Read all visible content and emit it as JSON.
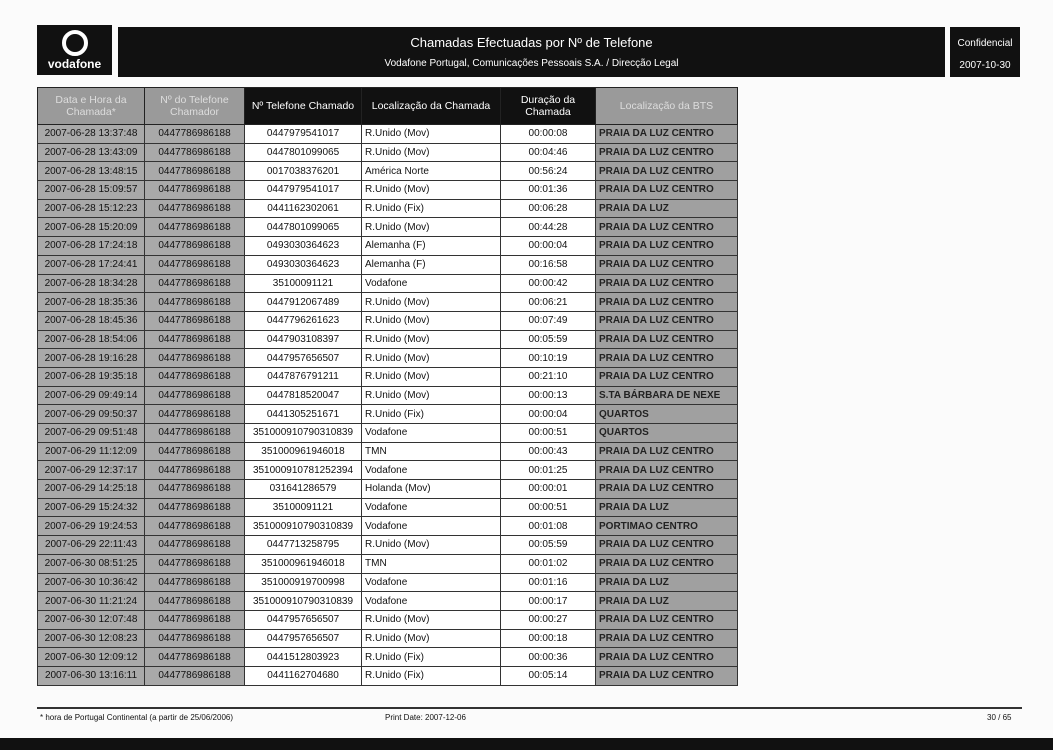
{
  "header": {
    "logo_text": "vodafone",
    "title": "Chamadas Efectuadas por Nº de Telefone",
    "subtitle": "Vodafone Portugal, Comunicações Pessoais S.A.  /  Direcção Legal",
    "classification": "Confidencial",
    "date": "2007-10-30"
  },
  "table": {
    "columns": [
      "Data e Hora da Chamada*",
      "Nº do Telefone Chamador",
      "Nº Telefone Chamado",
      "Localização da Chamada",
      "Duração da Chamada",
      "Localização da BTS"
    ],
    "rows": [
      [
        "2007-06-28 13:37:48",
        "0447786986188",
        "0447979541017",
        "R.Unido (Mov)",
        "00:00:08",
        "PRAIA DA LUZ CENTRO"
      ],
      [
        "2007-06-28 13:43:09",
        "0447786986188",
        "0447801099065",
        "R.Unido (Mov)",
        "00:04:46",
        "PRAIA DA LUZ CENTRO"
      ],
      [
        "2007-06-28 13:48:15",
        "0447786986188",
        "0017038376201",
        "América Norte",
        "00:56:24",
        "PRAIA DA LUZ CENTRO"
      ],
      [
        "2007-06-28 15:09:57",
        "0447786986188",
        "0447979541017",
        "R.Unido (Mov)",
        "00:01:36",
        "PRAIA DA LUZ CENTRO"
      ],
      [
        "2007-06-28 15:12:23",
        "0447786986188",
        "0441162302061",
        "R.Unido (Fix)",
        "00:06:28",
        "PRAIA DA LUZ"
      ],
      [
        "2007-06-28 15:20:09",
        "0447786986188",
        "0447801099065",
        "R.Unido (Mov)",
        "00:44:28",
        "PRAIA DA LUZ CENTRO"
      ],
      [
        "2007-06-28 17:24:18",
        "0447786986188",
        "0493030364623",
        "Alemanha (F)",
        "00:00:04",
        "PRAIA DA LUZ CENTRO"
      ],
      [
        "2007-06-28 17:24:41",
        "0447786986188",
        "0493030364623",
        "Alemanha (F)",
        "00:16:58",
        "PRAIA DA LUZ CENTRO"
      ],
      [
        "2007-06-28 18:34:28",
        "0447786986188",
        "35100091121",
        "Vodafone",
        "00:00:42",
        "PRAIA DA LUZ CENTRO"
      ],
      [
        "2007-06-28 18:35:36",
        "0447786986188",
        "0447912067489",
        "R.Unido (Mov)",
        "00:06:21",
        "PRAIA DA LUZ CENTRO"
      ],
      [
        "2007-06-28 18:45:36",
        "0447786986188",
        "0447796261623",
        "R.Unido (Mov)",
        "00:07:49",
        "PRAIA DA LUZ CENTRO"
      ],
      [
        "2007-06-28 18:54:06",
        "0447786986188",
        "0447903108397",
        "R.Unido (Mov)",
        "00:05:59",
        "PRAIA DA LUZ CENTRO"
      ],
      [
        "2007-06-28 19:16:28",
        "0447786986188",
        "0447957656507",
        "R.Unido (Mov)",
        "00:10:19",
        "PRAIA DA LUZ CENTRO"
      ],
      [
        "2007-06-28 19:35:18",
        "0447786986188",
        "0447876791211",
        "R.Unido (Mov)",
        "00:21:10",
        "PRAIA DA LUZ CENTRO"
      ],
      [
        "2007-06-29 09:49:14",
        "0447786986188",
        "0447818520047",
        "R.Unido (Mov)",
        "00:00:13",
        "S.TA BÁRBARA DE NEXE"
      ],
      [
        "2007-06-29 09:50:37",
        "0447786986188",
        "0441305251671",
        "R.Unido (Fix)",
        "00:00:04",
        "QUARTOS"
      ],
      [
        "2007-06-29 09:51:48",
        "0447786986188",
        "351000910790310839",
        "Vodafone",
        "00:00:51",
        "QUARTOS"
      ],
      [
        "2007-06-29 11:12:09",
        "0447786986188",
        "351000961946018",
        "TMN",
        "00:00:43",
        "PRAIA DA LUZ CENTRO"
      ],
      [
        "2007-06-29 12:37:17",
        "0447786986188",
        "351000910781252394",
        "Vodafone",
        "00:01:25",
        "PRAIA DA LUZ CENTRO"
      ],
      [
        "2007-06-29 14:25:18",
        "0447786986188",
        "031641286579",
        "Holanda (Mov)",
        "00:00:01",
        "PRAIA DA LUZ CENTRO"
      ],
      [
        "2007-06-29 15:24:32",
        "0447786986188",
        "35100091121",
        "Vodafone",
        "00:00:51",
        "PRAIA DA LUZ"
      ],
      [
        "2007-06-29 19:24:53",
        "0447786986188",
        "351000910790310839",
        "Vodafone",
        "00:01:08",
        "PORTIMAO CENTRO"
      ],
      [
        "2007-06-29 22:11:43",
        "0447786986188",
        "0447713258795",
        "R.Unido (Mov)",
        "00:05:59",
        "PRAIA DA LUZ CENTRO"
      ],
      [
        "2007-06-30 08:51:25",
        "0447786986188",
        "351000961946018",
        "TMN",
        "00:01:02",
        "PRAIA DA LUZ CENTRO"
      ],
      [
        "2007-06-30 10:36:42",
        "0447786986188",
        "351000919700998",
        "Vodafone",
        "00:01:16",
        "PRAIA DA LUZ"
      ],
      [
        "2007-06-30 11:21:24",
        "0447786986188",
        "351000910790310839",
        "Vodafone",
        "00:00:17",
        "PRAIA DA LUZ"
      ],
      [
        "2007-06-30 12:07:48",
        "0447786986188",
        "0447957656507",
        "R.Unido (Mov)",
        "00:00:27",
        "PRAIA DA LUZ CENTRO"
      ],
      [
        "2007-06-30 12:08:23",
        "0447786986188",
        "0447957656507",
        "R.Unido (Mov)",
        "00:00:18",
        "PRAIA DA LUZ CENTRO"
      ],
      [
        "2007-06-30 12:09:12",
        "0447786986188",
        "0441512803923",
        "R.Unido (Fix)",
        "00:00:36",
        "PRAIA DA LUZ CENTRO"
      ],
      [
        "2007-06-30 13:16:11",
        "0447786986188",
        "0441162704680",
        "R.Unido (Fix)",
        "00:05:14",
        "PRAIA DA LUZ CENTRO"
      ]
    ]
  },
  "footer": {
    "note": "* hora de Portugal Continental (a partir de 25/06/2006)",
    "print_date": "Print Date:  2007-12-06",
    "page": "30 / 65"
  }
}
